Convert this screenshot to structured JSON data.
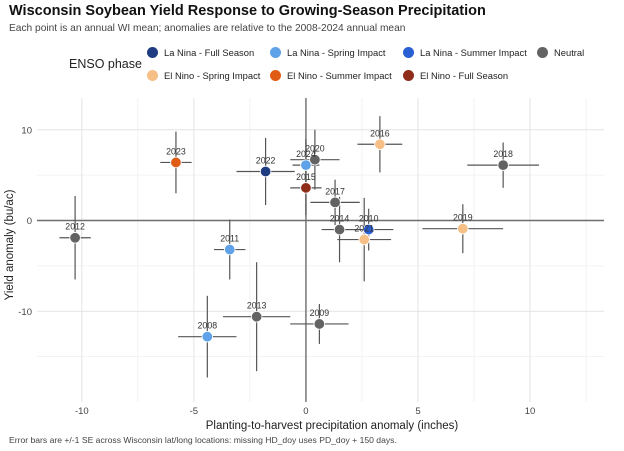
{
  "chart_data": {
    "type": "scatter",
    "title": "Wisconsin Soybean Yield Response to Growing-Season Precipitation",
    "subtitle": "Each point is an annual WI mean; anomalies are relative to the 2008-2024 annual mean",
    "xlabel": "Planting-to-harvest precipitation anomaly (inches)",
    "ylabel": "Yield anomaly (bu/ac)",
    "caption": "Error bars are +/-1 SE across Wisconsin lat/long locations: missing HD_doy uses PD_doy + 150 days.",
    "xlim": [
      -12,
      13.3
    ],
    "ylim": [
      -20,
      13.5
    ],
    "xticks": [
      -10,
      -5,
      0,
      5,
      10
    ],
    "yticks": [
      -10,
      0,
      10
    ],
    "xtick_labels": [
      "-10",
      "-5",
      "0",
      "5",
      "10"
    ],
    "ytick_labels": [
      "-10",
      "0",
      "10"
    ],
    "grid": true,
    "legend_title": "ENSO phase",
    "legend_position": "top",
    "legend": [
      {
        "label": "La Nina - Full Season",
        "color": "#1f3b82"
      },
      {
        "label": "La Nina - Spring Impact",
        "color": "#5fa2e8"
      },
      {
        "label": "La Nina - Summer Impact",
        "color": "#2a5fd4"
      },
      {
        "label": "Neutral",
        "color": "#636363"
      },
      {
        "label": "El Nino - Spring Impact",
        "color": "#f6bf86"
      },
      {
        "label": "El Nino - Summer Impact",
        "color": "#e05c14"
      },
      {
        "label": "El Nino - Full Season",
        "color": "#8f2d1b"
      }
    ],
    "points": [
      {
        "year": "2008",
        "x": -4.4,
        "y": -12.8,
        "xerr": 1.3,
        "yerr": 4.5,
        "phase": "La Nina - Spring Impact",
        "color": "#5fa2e8"
      },
      {
        "year": "2009",
        "x": 0.6,
        "y": -11.4,
        "xerr": 1.3,
        "yerr": 2.2,
        "phase": "Neutral",
        "color": "#636363"
      },
      {
        "year": "2010",
        "x": 2.8,
        "y": -1.0,
        "xerr": 1.1,
        "yerr": 2.3,
        "phase": "La Nina - Summer Impact",
        "color": "#2a5fd4"
      },
      {
        "year": "2011",
        "x": -3.4,
        "y": -3.2,
        "xerr": 0.7,
        "yerr": 3.3,
        "phase": "La Nina - Spring Impact",
        "color": "#5fa2e8"
      },
      {
        "year": "2012",
        "x": -10.3,
        "y": -1.9,
        "xerr": 0.7,
        "yerr": 4.6,
        "phase": "Neutral",
        "color": "#636363"
      },
      {
        "year": "2013",
        "x": -2.2,
        "y": -10.6,
        "xerr": 1.5,
        "yerr": 6.0,
        "phase": "Neutral",
        "color": "#636363"
      },
      {
        "year": "2014",
        "x": 1.5,
        "y": -1.0,
        "xerr": 0.8,
        "yerr": 3.6,
        "phase": "Neutral",
        "color": "#636363"
      },
      {
        "year": "2015",
        "x": 0.0,
        "y": 3.6,
        "xerr": 0.7,
        "yerr": 3.0,
        "phase": "El Nino - Full Season",
        "color": "#8f2d1b"
      },
      {
        "year": "2016",
        "x": 3.3,
        "y": 8.4,
        "xerr": 1.0,
        "yerr": 3.1,
        "phase": "El Nino - Spring Impact",
        "color": "#f6bf86"
      },
      {
        "year": "2017",
        "x": 1.3,
        "y": 2.0,
        "xerr": 1.1,
        "yerr": 2.5,
        "phase": "Neutral",
        "color": "#636363"
      },
      {
        "year": "2018",
        "x": 8.8,
        "y": 6.1,
        "xerr": 1.6,
        "yerr": 2.5,
        "phase": "Neutral",
        "color": "#636363"
      },
      {
        "year": "2019",
        "x": 7.0,
        "y": -0.9,
        "xerr": 1.8,
        "yerr": 2.7,
        "phase": "El Nino - Spring Impact",
        "color": "#f6bf86"
      },
      {
        "year": "2020",
        "x": 0.4,
        "y": 6.7,
        "xerr": 1.1,
        "yerr": 3.3,
        "phase": "Neutral",
        "color": "#636363"
      },
      {
        "year": "2021",
        "x": 2.6,
        "y": -2.1,
        "xerr": 1.2,
        "yerr": 4.6,
        "phase": "El Nino - Spring Impact",
        "color": "#f6bf86"
      },
      {
        "year": "2022",
        "x": -1.8,
        "y": 5.4,
        "xerr": 1.3,
        "yerr": 3.7,
        "phase": "La Nina - Full Season",
        "color": "#1f3b82"
      },
      {
        "year": "2023",
        "x": -5.8,
        "y": 6.4,
        "xerr": 0.7,
        "yerr": 3.4,
        "phase": "El Nino - Summer Impact",
        "color": "#e05c14"
      },
      {
        "year": "2024",
        "x": 0.0,
        "y": 6.1,
        "xerr": 0.6,
        "yerr": 2.9,
        "phase": "La Nina - Spring Impact",
        "color": "#5fa2e8"
      }
    ]
  }
}
